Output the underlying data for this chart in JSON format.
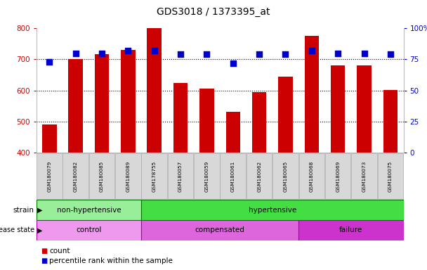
{
  "title": "GDS3018 / 1373395_at",
  "samples": [
    "GSM180079",
    "GSM180082",
    "GSM180085",
    "GSM180089",
    "GSM178755",
    "GSM180057",
    "GSM180059",
    "GSM180061",
    "GSM180062",
    "GSM180065",
    "GSM180068",
    "GSM180069",
    "GSM180073",
    "GSM180075"
  ],
  "counts": [
    490,
    700,
    718,
    730,
    800,
    625,
    607,
    532,
    595,
    645,
    775,
    680,
    680,
    602
  ],
  "percentiles": [
    73,
    80,
    80,
    82,
    82,
    79,
    79,
    72,
    79,
    79,
    82,
    80,
    80,
    79
  ],
  "ylim_left": [
    400,
    800
  ],
  "ylim_right": [
    0,
    100
  ],
  "yticks_left": [
    400,
    500,
    600,
    700,
    800
  ],
  "yticks_right": [
    0,
    25,
    50,
    75,
    100
  ],
  "bar_color": "#cc0000",
  "dot_color": "#0000cc",
  "strain_groups": [
    {
      "label": "non-hypertensive",
      "start": 0,
      "end": 4,
      "color": "#99ee99"
    },
    {
      "label": "hypertensive",
      "start": 4,
      "end": 14,
      "color": "#44dd44"
    }
  ],
  "disease_groups": [
    {
      "label": "control",
      "start": 0,
      "end": 4,
      "color": "#ee99ee"
    },
    {
      "label": "compensated",
      "start": 4,
      "end": 10,
      "color": "#dd66dd"
    },
    {
      "label": "failure",
      "start": 10,
      "end": 14,
      "color": "#cc33cc"
    }
  ],
  "bar_width": 0.55,
  "dot_size": 35,
  "yaxis_left_color": "#cc0000",
  "yaxis_right_color": "#0000cc"
}
